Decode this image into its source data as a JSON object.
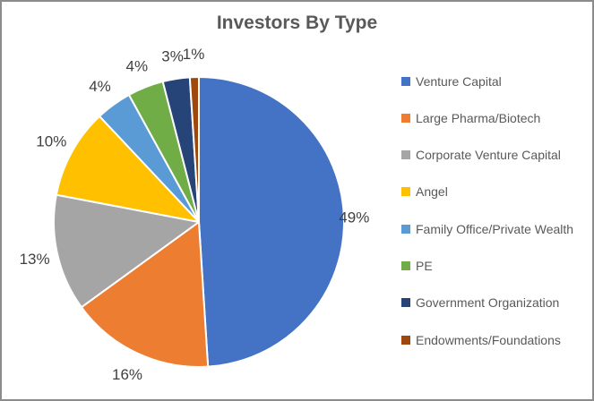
{
  "window": {
    "background_color": "#FFFFFF",
    "border_color": "#8C8C8C"
  },
  "chart_data": {
    "type": "pie",
    "title": "Investors By Type",
    "categories": [
      "Venture Capital",
      "Large Pharma/Biotech",
      "Corporate Venture Capital",
      "Angel",
      "Family Office/Private Wealth",
      "PE",
      "Government Organization",
      "Endowments/Foundations"
    ],
    "values": [
      49,
      16,
      13,
      10,
      4,
      4,
      3,
      1
    ],
    "data_labels": [
      "49%",
      "16%",
      "13%",
      "10%",
      "4%",
      "4%",
      "3%",
      "1%"
    ],
    "unit": "%",
    "colors": [
      "#4472C4",
      "#ED7D31",
      "#A5A5A5",
      "#FFC000",
      "#5B9BD5",
      "#70AD47",
      "#264478",
      "#9E480E"
    ],
    "start_angle_deg": 0,
    "direction": "clockwise",
    "legend_position": "right",
    "slice_border_color": "#FFFFFF",
    "title_color": "#595959",
    "data_label_color": "#404040",
    "legend_text_color": "#595959"
  }
}
